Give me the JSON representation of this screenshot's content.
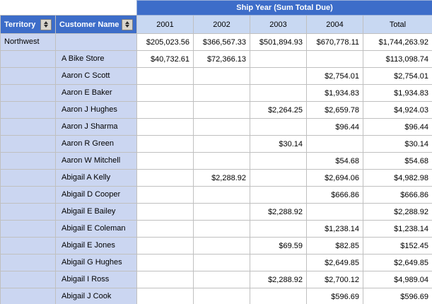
{
  "colors": {
    "header-blue": "#3d6dc9",
    "column-header-blue": "#c8d8f2",
    "row-header-lavender": "#cbd6f1",
    "grid-line": "#c0c0c0"
  },
  "header": {
    "ship_year_title": "Ship Year (Sum Total Due)",
    "territory_label": "Territory",
    "customer_label": "Customer Name",
    "year_columns": [
      "2001",
      "2002",
      "2003",
      "2004"
    ],
    "total_label": "Total"
  },
  "rows": [
    {
      "territory": "Northwest",
      "customer": "",
      "values": [
        "$205,023.56",
        "$366,567.33",
        "$501,894.93",
        "$670,778.11",
        "$1,744,263.92"
      ]
    },
    {
      "territory": "",
      "customer": "A Bike Store",
      "values": [
        "$40,732.61",
        "$72,366.13",
        "",
        "",
        "$113,098.74"
      ]
    },
    {
      "territory": "",
      "customer": "Aaron C Scott",
      "values": [
        "",
        "",
        "",
        "$2,754.01",
        "$2,754.01"
      ]
    },
    {
      "territory": "",
      "customer": "Aaron E Baker",
      "values": [
        "",
        "",
        "",
        "$1,934.83",
        "$1,934.83"
      ]
    },
    {
      "territory": "",
      "customer": "Aaron J Hughes",
      "values": [
        "",
        "",
        "$2,264.25",
        "$2,659.78",
        "$4,924.03"
      ]
    },
    {
      "territory": "",
      "customer": "Aaron J Sharma",
      "values": [
        "",
        "",
        "",
        "$96.44",
        "$96.44"
      ]
    },
    {
      "territory": "",
      "customer": "Aaron R Green",
      "values": [
        "",
        "",
        "$30.14",
        "",
        "$30.14"
      ]
    },
    {
      "territory": "",
      "customer": "Aaron W Mitchell",
      "values": [
        "",
        "",
        "",
        "$54.68",
        "$54.68"
      ]
    },
    {
      "territory": "",
      "customer": "Abigail A Kelly",
      "values": [
        "",
        "$2,288.92",
        "",
        "$2,694.06",
        "$4,982.98"
      ]
    },
    {
      "territory": "",
      "customer": "Abigail D Cooper",
      "values": [
        "",
        "",
        "",
        "$666.86",
        "$666.86"
      ]
    },
    {
      "territory": "",
      "customer": "Abigail E Bailey",
      "values": [
        "",
        "",
        "$2,288.92",
        "",
        "$2,288.92"
      ]
    },
    {
      "territory": "",
      "customer": "Abigail E Coleman",
      "values": [
        "",
        "",
        "",
        "$1,238.14",
        "$1,238.14"
      ]
    },
    {
      "territory": "",
      "customer": "Abigail E Jones",
      "values": [
        "",
        "",
        "$69.59",
        "$82.85",
        "$152.45"
      ]
    },
    {
      "territory": "",
      "customer": "Abigail G Hughes",
      "values": [
        "",
        "",
        "",
        "$2,649.85",
        "$2,649.85"
      ]
    },
    {
      "territory": "",
      "customer": "Abigail I Ross",
      "values": [
        "",
        "",
        "$2,288.92",
        "$2,700.12",
        "$4,989.04"
      ]
    },
    {
      "territory": "",
      "customer": "Abigail J Cook",
      "values": [
        "",
        "",
        "",
        "$596.69",
        "$596.69"
      ]
    }
  ]
}
